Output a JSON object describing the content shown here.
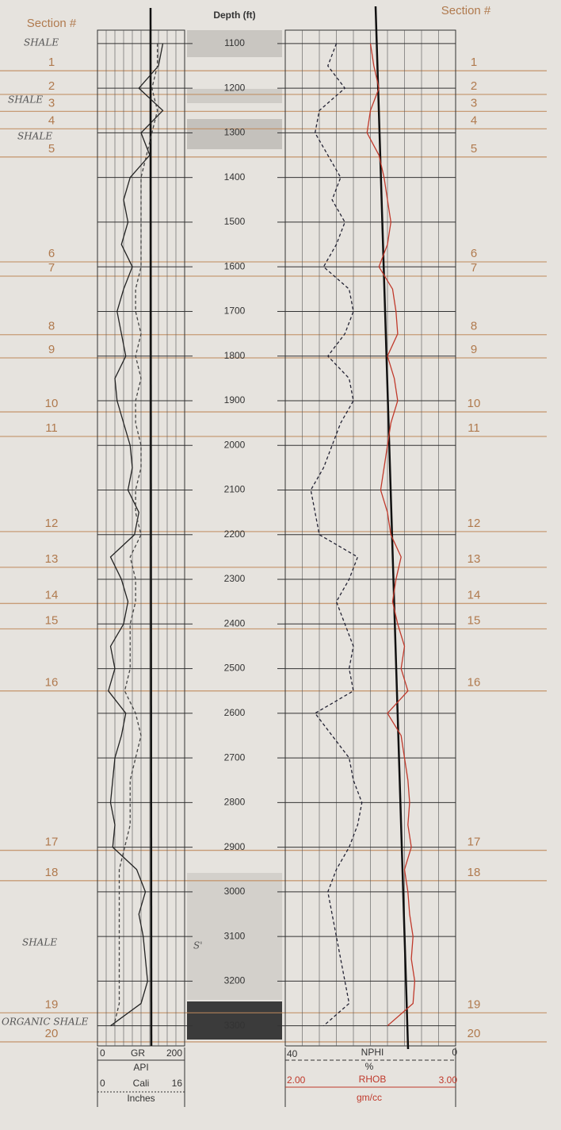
{
  "chart_data": {
    "type": "well-log",
    "depth_label": "Depth (ft)",
    "ylim": [
      1070,
      3345
    ],
    "yticks": [
      1100,
      1200,
      1300,
      1400,
      1500,
      1600,
      1700,
      1800,
      1900,
      2000,
      2100,
      2200,
      2300,
      2400,
      2500,
      2600,
      2700,
      2800,
      2900,
      3000,
      3100,
      3200,
      3300
    ],
    "section_header": "Section #",
    "sections": [
      {
        "name": "1",
        "depth": 1161
      },
      {
        "name": "2",
        "depth": 1214
      },
      {
        "name": "3",
        "depth": 1252
      },
      {
        "name": "4",
        "depth": 1291
      },
      {
        "name": "5",
        "depth": 1354
      },
      {
        "name": "6",
        "depth": 1589
      },
      {
        "name": "7",
        "depth": 1621
      },
      {
        "name": "8",
        "depth": 1752
      },
      {
        "name": "9",
        "depth": 1804
      },
      {
        "name": "10",
        "depth": 1925
      },
      {
        "name": "11",
        "depth": 1980
      },
      {
        "name": "12",
        "depth": 2193
      },
      {
        "name": "13",
        "depth": 2273
      },
      {
        "name": "14",
        "depth": 2354
      },
      {
        "name": "15",
        "depth": 2411
      },
      {
        "name": "16",
        "depth": 2550
      },
      {
        "name": "17",
        "depth": 2907
      },
      {
        "name": "18",
        "depth": 2975
      },
      {
        "name": "19",
        "depth": 3271
      },
      {
        "name": "20",
        "depth": 3336
      }
    ],
    "notes": [
      "SHALE",
      "SHALE",
      "SHALE",
      "SHALE",
      "ORGANIC SHALE",
      "S'"
    ],
    "depths": [
      1100,
      1150,
      1200,
      1250,
      1300,
      1350,
      1400,
      1450,
      1500,
      1550,
      1600,
      1650,
      1700,
      1750,
      1800,
      1850,
      1900,
      1950,
      2000,
      2050,
      2100,
      2150,
      2200,
      2250,
      2300,
      2350,
      2400,
      2450,
      2500,
      2550,
      2600,
      2650,
      2700,
      2750,
      2800,
      2850,
      2900,
      2950,
      3000,
      3050,
      3100,
      3150,
      3200,
      3250,
      3300
    ],
    "series": [
      {
        "name": "GR",
        "unit": "API",
        "color": "#222",
        "track": "left",
        "xlim": [
          0,
          200
        ],
        "values": [
          150,
          140,
          95,
          150,
          100,
          120,
          75,
          60,
          70,
          55,
          80,
          60,
          45,
          55,
          65,
          40,
          45,
          60,
          75,
          80,
          70,
          95,
          85,
          30,
          55,
          70,
          60,
          30,
          40,
          25,
          65,
          55,
          40,
          35,
          30,
          40,
          35,
          90,
          110,
          95,
          105,
          110,
          115,
          100,
          30
        ]
      },
      {
        "name": "Cali",
        "unit": "Inches",
        "color": "#444",
        "track": "left",
        "dash": true,
        "xlim": [
          0,
          16
        ],
        "values": [
          11,
          11,
          10,
          11,
          10,
          9,
          8,
          8,
          8,
          8,
          8,
          7,
          7,
          8,
          7,
          8,
          7,
          7,
          8,
          8,
          7,
          7,
          8,
          6,
          7,
          7,
          6,
          6,
          6,
          5,
          7,
          8,
          7,
          6,
          6,
          6,
          5,
          4,
          4,
          4,
          4,
          4,
          4,
          4,
          3
        ]
      },
      {
        "name": "NPHI",
        "unit": "%",
        "color": "#223",
        "track": "right",
        "dash": true,
        "xlim": [
          40,
          0
        ],
        "values": [
          28,
          30,
          26,
          32,
          33,
          30,
          27,
          29,
          26,
          28,
          31,
          25,
          24,
          26,
          30,
          25,
          24,
          27,
          29,
          31,
          34,
          33,
          32,
          23,
          25,
          28,
          26,
          24,
          25,
          24,
          33,
          29,
          25,
          24,
          22,
          23,
          25,
          28,
          30,
          29,
          28,
          27,
          26,
          25,
          31
        ]
      },
      {
        "name": "RHOB",
        "unit": "gm/cc",
        "color": "#c0392b",
        "track": "right",
        "xlim": [
          {
            "value": 2,
            "label": "2.00"
          },
          {
            "value": 3,
            "label": "3.00"
          }
        ],
        "values": [
          2.5,
          2.52,
          2.55,
          2.5,
          2.48,
          2.55,
          2.58,
          2.6,
          2.62,
          2.6,
          2.55,
          2.63,
          2.65,
          2.66,
          2.6,
          2.64,
          2.66,
          2.62,
          2.6,
          2.58,
          2.56,
          2.6,
          2.62,
          2.68,
          2.65,
          2.63,
          2.66,
          2.7,
          2.68,
          2.72,
          2.6,
          2.68,
          2.7,
          2.72,
          2.73,
          2.72,
          2.74,
          2.7,
          2.72,
          2.73,
          2.75,
          2.74,
          2.76,
          2.75,
          2.6
        ]
      }
    ]
  }
}
